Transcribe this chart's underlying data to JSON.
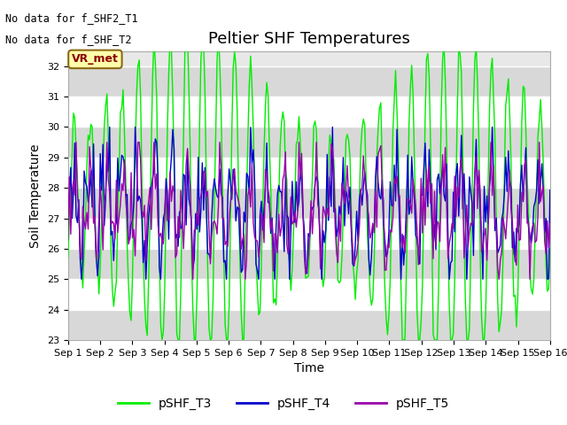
{
  "title": "Peltier SHF Temperatures",
  "xlabel": "Time",
  "ylabel": "Soil Temperature",
  "annotations": [
    "No data for f_SHF2_T1",
    "No data for f_SHF_T2"
  ],
  "vr_met_label": "VR_met",
  "ylim": [
    23.0,
    32.5
  ],
  "yticks": [
    23.0,
    24.0,
    25.0,
    26.0,
    27.0,
    28.0,
    29.0,
    30.0,
    31.0,
    32.0
  ],
  "xtick_labels": [
    "Sep 1",
    "Sep 2",
    "Sep 3",
    "Sep 4",
    "Sep 5",
    "Sep 6",
    "Sep 7",
    "Sep 8",
    "Sep 9",
    "Sep 10",
    "Sep 11",
    "Sep 12",
    "Sep 13",
    "Sep 14",
    "Sep 15",
    "Sep 16"
  ],
  "fig_bg_color": "#ffffff",
  "plot_bg_color": "#e8e8e8",
  "band_color_dark": "#d8d8d8",
  "band_color_light": "#ebebeb",
  "line_colors": {
    "T3": "#00ee00",
    "T4": "#0000cc",
    "T5": "#9900aa"
  },
  "legend_labels": [
    "pSHF_T3",
    "pSHF_T4",
    "pSHF_T5"
  ],
  "legend_colors": [
    "#00ee00",
    "#0000cc",
    "#9900aa"
  ],
  "title_fontsize": 13,
  "axis_label_fontsize": 10,
  "tick_fontsize": 8,
  "legend_fontsize": 10
}
